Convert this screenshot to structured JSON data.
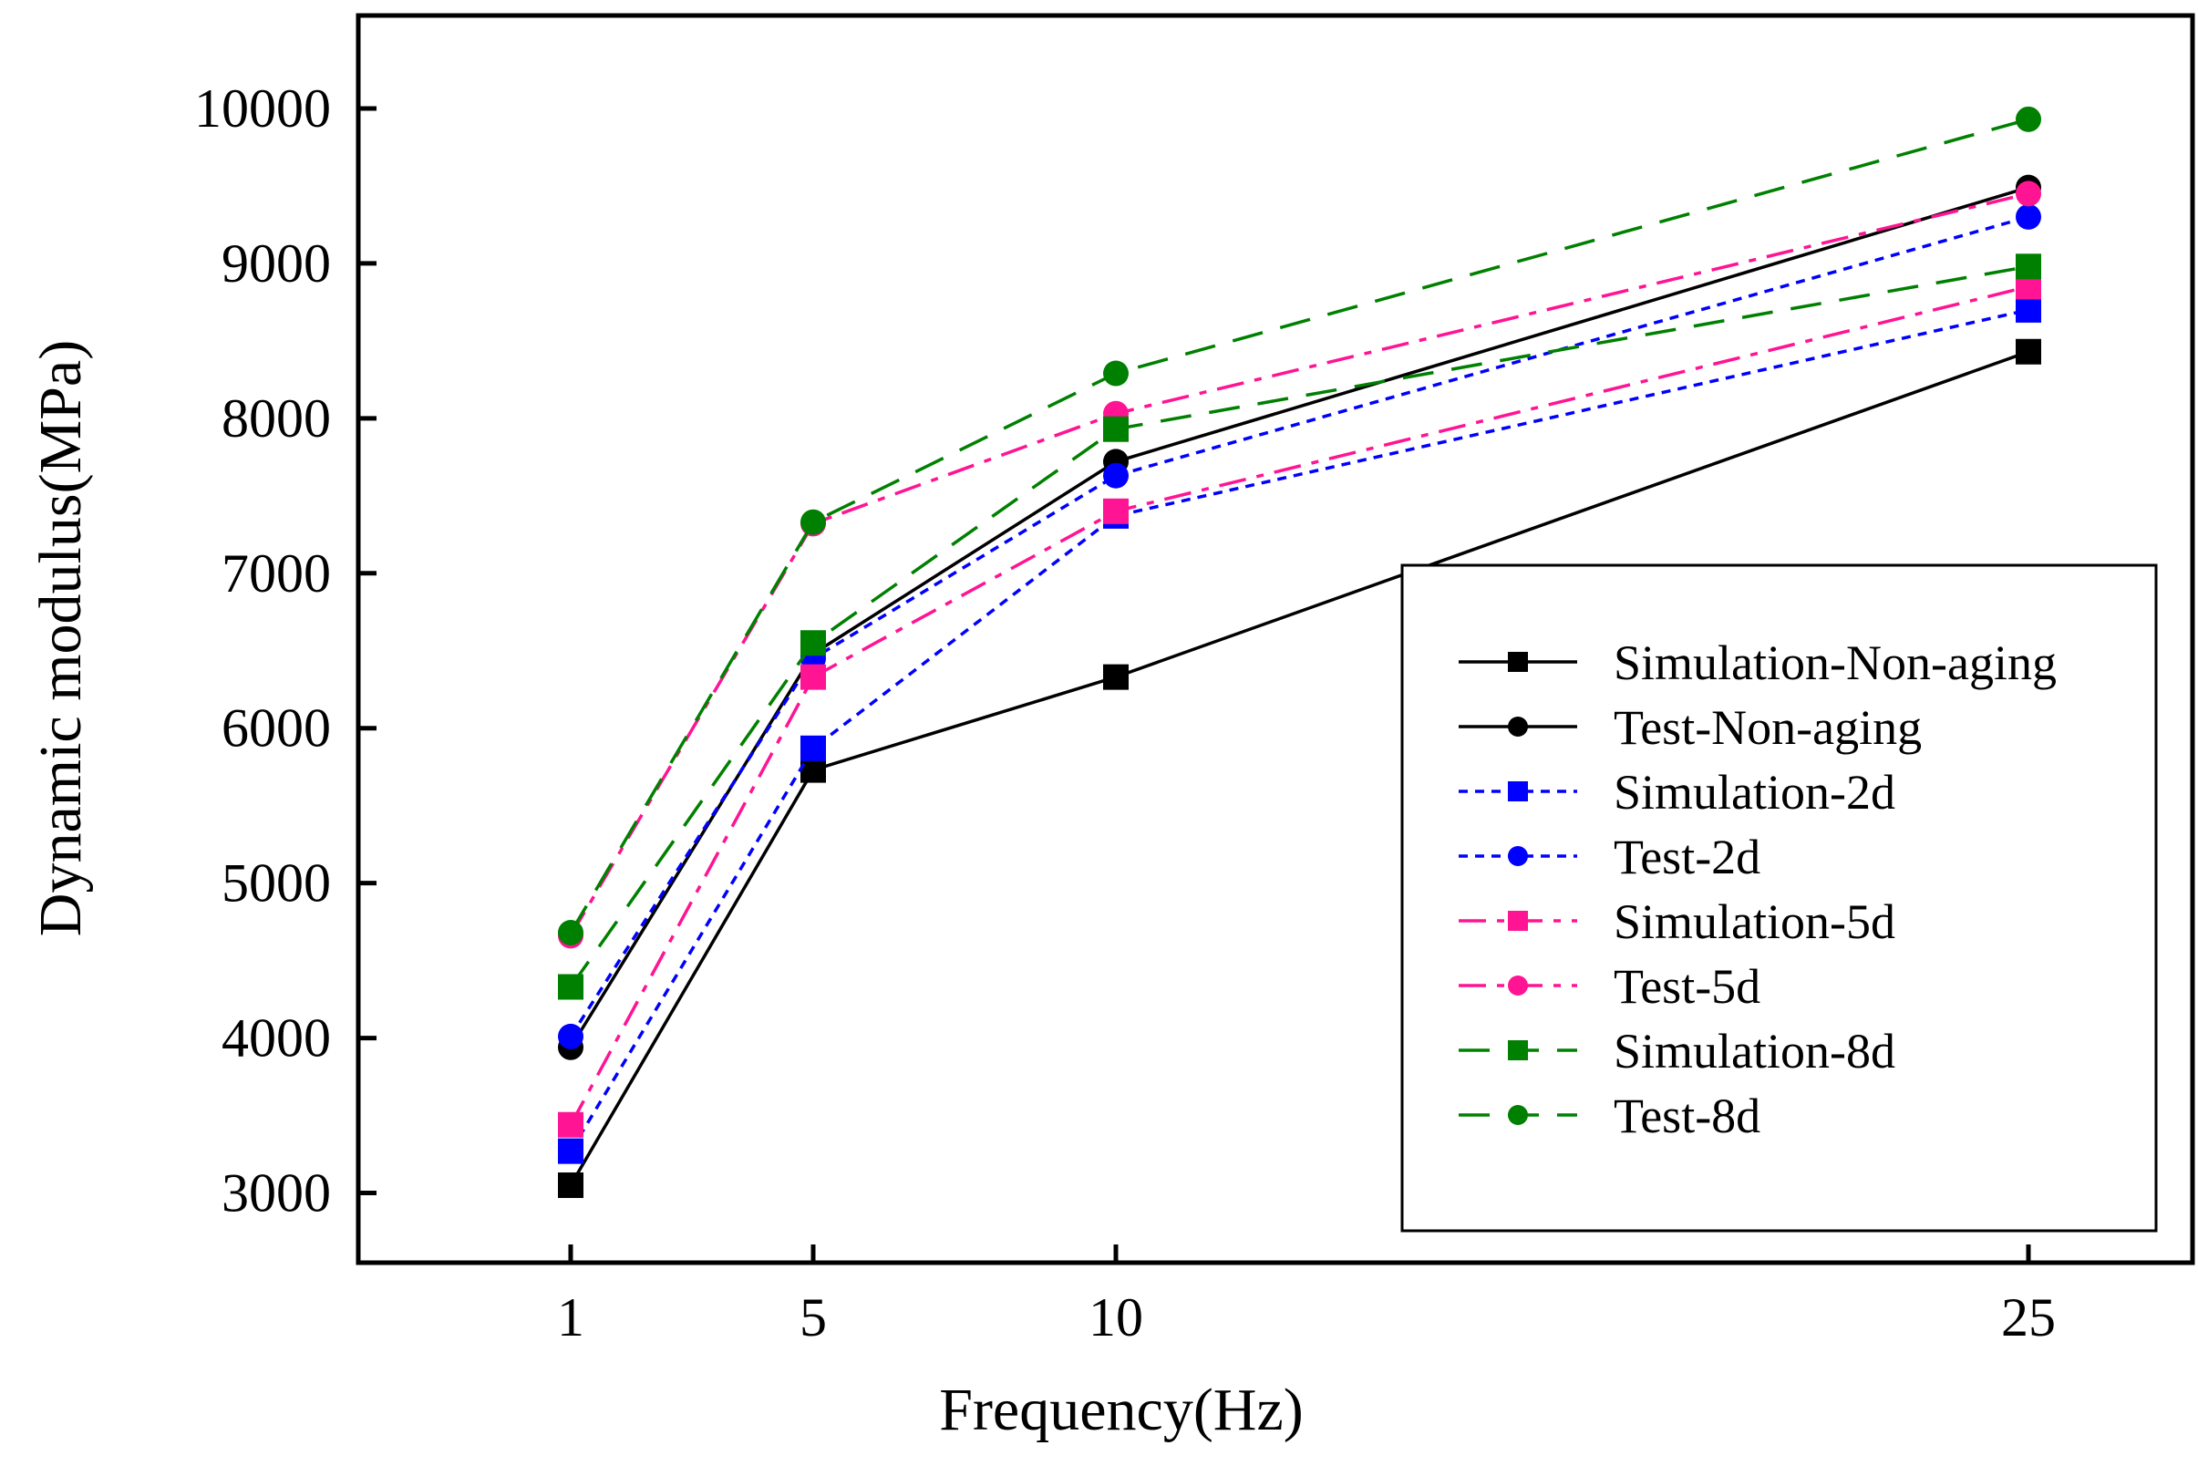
{
  "chart_data": {
    "type": "line",
    "title": "",
    "xlabel": "Frequency(Hz)",
    "ylabel": "Dynamic modulus(MPa)",
    "x": [
      1,
      5,
      10,
      25
    ],
    "x_tick_labels": [
      "1",
      "5",
      "10",
      "25"
    ],
    "y_ticks": [
      3000,
      4000,
      5000,
      6000,
      7000,
      8000,
      9000,
      10000
    ],
    "y_tick_labels": [
      "3000",
      "4000",
      "5000",
      "6000",
      "7000",
      "8000",
      "9000",
      "10000"
    ],
    "ylim": [
      2550,
      10600
    ],
    "grid": false,
    "legend_position": "bottom-right",
    "series": [
      {
        "name": "Simulation-Non-aging",
        "color": "#000000",
        "dash": "solid",
        "marker": "square",
        "values": [
          3050,
          5730,
          6330,
          8430
        ]
      },
      {
        "name": "Test-Non-aging",
        "color": "#000000",
        "dash": "solid",
        "marker": "circle",
        "values": [
          3940,
          6480,
          7720,
          9490
        ]
      },
      {
        "name": "Simulation-2d",
        "color": "#0000ff",
        "dash": "short-dash",
        "marker": "square",
        "values": [
          3270,
          5870,
          7370,
          8700
        ]
      },
      {
        "name": "Test-2d",
        "color": "#0000ff",
        "dash": "short-dash",
        "marker": "circle",
        "values": [
          4010,
          6450,
          7630,
          9300
        ]
      },
      {
        "name": "Simulation-5d",
        "color": "#ff1493",
        "dash": "dash-dot",
        "marker": "square",
        "values": [
          3440,
          6330,
          7400,
          8850
        ]
      },
      {
        "name": "Test-5d",
        "color": "#ff1493",
        "dash": "dash-dot",
        "marker": "circle",
        "values": [
          4660,
          7320,
          8030,
          9450
        ]
      },
      {
        "name": "Simulation-8d",
        "color": "#008000",
        "dash": "long-dash",
        "marker": "square",
        "values": [
          4330,
          6550,
          7930,
          8980
        ]
      },
      {
        "name": "Test-8d",
        "color": "#008000",
        "dash": "long-dash",
        "marker": "circle",
        "values": [
          4680,
          7330,
          8290,
          9930
        ]
      }
    ]
  }
}
